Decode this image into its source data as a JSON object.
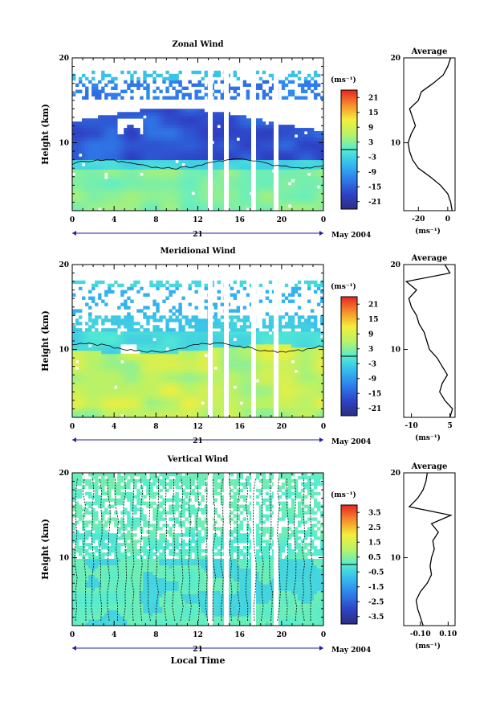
{
  "chart_data": [
    {
      "type": "heatmap",
      "title": "Zonal Wind",
      "ylabel": "Height (km)",
      "ylim": [
        2,
        20
      ],
      "yticks": [
        10,
        20
      ],
      "xlim": [
        0,
        24
      ],
      "xticks": [
        "0",
        "4",
        "8",
        "12",
        "16",
        "20",
        "0"
      ],
      "day_label": "21",
      "date_label": "May 2004",
      "colorbar": {
        "unit": "(ms⁻¹)",
        "labels": [
          "21",
          "15",
          "9",
          "3",
          "-3",
          "-9",
          "-15",
          "-21"
        ],
        "range": [
          -24,
          24
        ]
      },
      "profile": {
        "title": "Average",
        "xlim": [
          -30,
          5
        ],
        "xticks": [
          "-20",
          "0"
        ],
        "xlabel": "(ms⁻¹)",
        "yticks": [
          10,
          20
        ],
        "height": [
          2,
          3,
          4,
          5,
          6,
          7,
          8,
          9,
          10,
          11,
          12,
          13,
          14,
          15,
          16,
          17,
          18,
          19,
          20
        ],
        "values": [
          3,
          2,
          0,
          -5,
          -12,
          -20,
          -24,
          -26,
          -27,
          -25,
          -22,
          -24,
          -26,
          -20,
          -18,
          -10,
          -3,
          0,
          2
        ]
      }
    },
    {
      "type": "heatmap",
      "title": "Meridional Wind",
      "ylabel": "Height (km)",
      "ylim": [
        2,
        20
      ],
      "yticks": [
        10,
        20
      ],
      "xlim": [
        0,
        24
      ],
      "xticks": [
        "0",
        "4",
        "8",
        "12",
        "16",
        "20",
        "0"
      ],
      "day_label": "21",
      "date_label": "May 2004",
      "colorbar": {
        "unit": "(ms⁻¹)",
        "labels": [
          "21",
          "15",
          "9",
          "3",
          "-3",
          "-9",
          "-15",
          "-21"
        ],
        "range": [
          -24,
          24
        ]
      },
      "profile": {
        "title": "Average",
        "xlim": [
          -13,
          7
        ],
        "xticks": [
          "-10",
          "5"
        ],
        "xlabel": "(ms⁻¹)",
        "yticks": [
          10,
          20
        ],
        "height": [
          2,
          3,
          4,
          5,
          6,
          7,
          8,
          9,
          10,
          11,
          12,
          13,
          14,
          15,
          16,
          17,
          18,
          19,
          20
        ],
        "values": [
          5,
          6,
          3,
          1,
          2,
          4,
          2,
          0,
          -3,
          -4,
          -5,
          -7,
          -8,
          -10,
          -11,
          -8,
          -12,
          5,
          3
        ]
      }
    },
    {
      "type": "heatmap",
      "title": "Vertical Wind",
      "ylabel": "Height (km)",
      "xlabel": "Local Time",
      "ylim": [
        2,
        20
      ],
      "yticks": [
        10,
        20
      ],
      "xlim": [
        0,
        24
      ],
      "xticks": [
        "0",
        "4",
        "8",
        "12",
        "16",
        "20",
        "0"
      ],
      "day_label": "21",
      "date_label": "May 2004",
      "colorbar": {
        "unit": "(ms⁻¹)",
        "labels": [
          "3.5",
          "2.5",
          "1.5",
          "0.5",
          "-0.5",
          "-1.5",
          "-2.5",
          "-3.5"
        ],
        "range": [
          -4,
          4
        ]
      },
      "profile": {
        "title": "Average",
        "xlim": [
          -0.22,
          0.15
        ],
        "xticks": [
          "-0.10",
          "0.10"
        ],
        "xlabel": "(ms⁻¹)",
        "yticks": [
          10,
          20
        ],
        "height": [
          2,
          3,
          4,
          5,
          6,
          7,
          8,
          9,
          10,
          11,
          12,
          13,
          14,
          15,
          16,
          17,
          18,
          19,
          20
        ],
        "values": [
          -0.08,
          -0.1,
          -0.12,
          -0.13,
          -0.1,
          -0.05,
          -0.02,
          -0.03,
          -0.02,
          0.0,
          -0.01,
          0.03,
          -0.02,
          0.12,
          -0.18,
          -0.12,
          -0.08,
          -0.06,
          -0.05
        ]
      }
    }
  ]
}
